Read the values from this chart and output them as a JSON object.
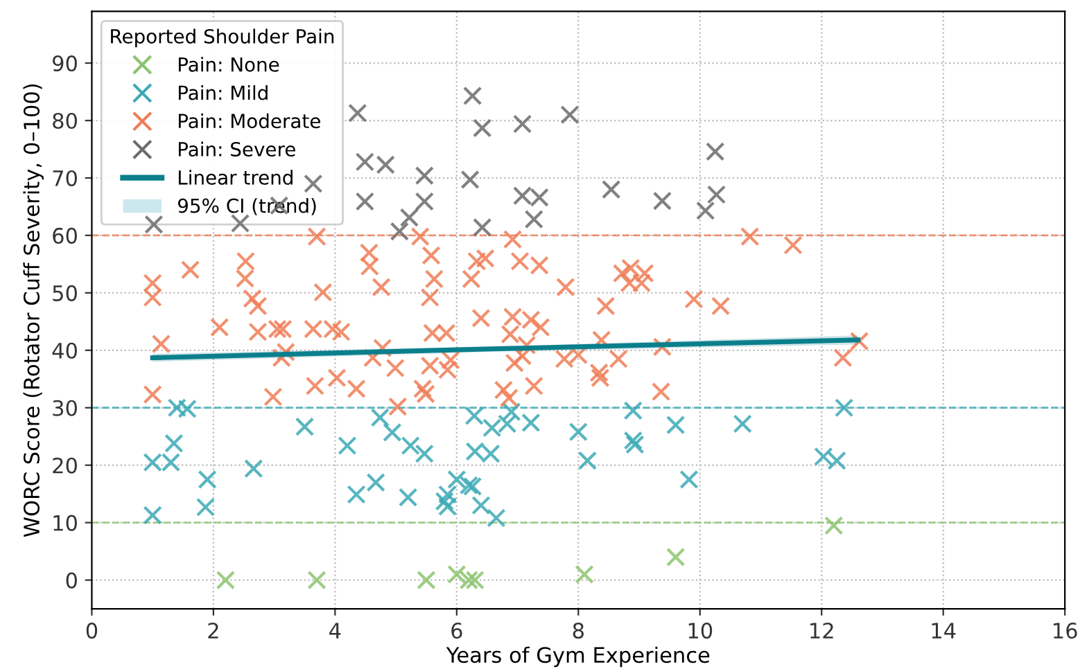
{
  "chart_data": {
    "type": "scatter",
    "xlabel": "Years of Gym Experience",
    "ylabel": "WORC Score (Rotator Cuff Severity, 0–100)",
    "legend_title": "Reported Shoulder Pain",
    "legend": "top left",
    "grid": true,
    "marker": "cross",
    "xlim": [
      0,
      16
    ],
    "xticks": [
      0,
      2,
      4,
      6,
      8,
      10,
      12,
      14,
      16
    ],
    "ylim": [
      -5,
      99
    ],
    "yticks": [
      0,
      10,
      20,
      30,
      40,
      50,
      60,
      70,
      80,
      90
    ],
    "series": [
      {
        "name": "Pain: None",
        "color": "#8cc46e",
        "x": [
          2.2,
          3.7,
          5.5,
          6.0,
          6.2,
          6.3,
          8.1,
          9.6,
          12.2
        ],
        "values": [
          0,
          0,
          0,
          1,
          0,
          0,
          1,
          4,
          9.5
        ]
      },
      {
        "name": "Pain: Mild",
        "color": "#3ba9b5",
        "x": [
          1.0,
          1.0,
          1.3,
          1.35,
          1.4,
          1.57,
          1.9,
          1.87,
          2.66,
          3.5,
          4.2,
          4.35,
          4.67,
          4.74,
          4.94,
          5.2,
          5.24,
          5.47,
          5.8,
          6.29,
          6.0,
          5.85,
          5.85,
          6.2,
          6.26,
          6.4,
          6.65,
          6.3,
          6.56,
          6.58,
          6.83,
          6.9,
          7.22,
          8.0,
          8.15,
          8.9,
          8.9,
          8.93,
          9.6,
          9.82,
          10.7,
          12.37,
          12.03,
          12.25
        ],
        "values": [
          20.5,
          11.3,
          20.5,
          23.8,
          30,
          29.8,
          17.5,
          12.7,
          19.4,
          26.7,
          23.4,
          14.9,
          17,
          28.3,
          25.7,
          14.4,
          23.4,
          22,
          13.7,
          28.6,
          17.5,
          14.9,
          12.8,
          16.5,
          16.3,
          13,
          10.8,
          22.4,
          22,
          26.5,
          27.2,
          29.3,
          27.4,
          25.8,
          20.8,
          29.5,
          24.3,
          23.6,
          27,
          17.5,
          27.2,
          30,
          21.5,
          20.8
        ]
      },
      {
        "name": "Pain: Moderate",
        "color": "#f07c56",
        "x": [
          1.0,
          1.0,
          1.62,
          2.53,
          2.52,
          2.64,
          2.73,
          3.7,
          3.8,
          4.56,
          4.57,
          4.76,
          5.4,
          5.58,
          5.63,
          5.56,
          6.24,
          6.33,
          6.47,
          6.92,
          7.04,
          7.36,
          7.79,
          8.45,
          8.72,
          8.86,
          8.84,
          9.09,
          9.04,
          9.9,
          10.34,
          10.82,
          11.53,
          1.14,
          1.0,
          2.1,
          2.73,
          3.05,
          3.14,
          3.64,
          3.96,
          4.1,
          3.12,
          3.19,
          2.98,
          3.67,
          4.03,
          4.35,
          4.62,
          4.78,
          4.99,
          5.03,
          5.44,
          5.49,
          5.56,
          5.6,
          5.83,
          5.85,
          5.9,
          6.4,
          6.92,
          7.22,
          7.38,
          6.88,
          7.15,
          6.95,
          7.08,
          6.77,
          6.86,
          7.27,
          7.77,
          8.0,
          8.38,
          8.34,
          8.36,
          8.66,
          9.38,
          9.36,
          12.35,
          12.62
        ],
        "values": [
          51.7,
          49.2,
          54,
          55.5,
          52.5,
          49,
          47.7,
          59.8,
          50.1,
          57,
          54.6,
          51,
          59.8,
          56.5,
          52.4,
          49.2,
          52.4,
          55.5,
          56,
          59.3,
          55.5,
          54.8,
          51,
          47.7,
          53.4,
          54.3,
          51.7,
          53.4,
          51.7,
          48.9,
          47.7,
          59.8,
          58.3,
          41.1,
          32.3,
          44,
          43.2,
          43.7,
          43.7,
          43.7,
          43.7,
          43.2,
          38.7,
          39.7,
          31.9,
          33.8,
          35.2,
          33.3,
          38.7,
          40.4,
          36.9,
          30.2,
          33.3,
          32.4,
          37.3,
          43,
          43,
          36.6,
          38.3,
          45.6,
          45.8,
          45.3,
          44,
          42.8,
          40.9,
          37.8,
          39,
          33.1,
          31.7,
          33.8,
          38.5,
          39.2,
          41.8,
          36.1,
          35.2,
          38.5,
          40.6,
          32.8,
          38.7,
          41.6
        ]
      },
      {
        "name": "Pain: Severe",
        "color": "#6b6b6b",
        "x": [
          1.02,
          2.44,
          3.08,
          3.64,
          4.37,
          4.49,
          4.83,
          4.49,
          5.47,
          5.47,
          5.22,
          5.06,
          6.26,
          6.42,
          7.08,
          7.86,
          6.22,
          7.08,
          7.36,
          7.27,
          6.42,
          8.54,
          9.38,
          10.25,
          10.27,
          10.09
        ],
        "values": [
          61.9,
          62.1,
          65.2,
          69,
          81.3,
          72.8,
          72.3,
          65.9,
          70.4,
          65.9,
          63.1,
          60.7,
          84.3,
          78.7,
          79.4,
          81,
          69.7,
          66.9,
          66.6,
          62.8,
          61.4,
          68,
          66,
          74.6,
          67.1,
          64.3
        ]
      },
      {
        "name": "Linear trend",
        "type": "line",
        "marker": "none",
        "color": "#0b7f8c",
        "x": [
          1.0,
          6.8,
          12.6
        ],
        "values": [
          38.7,
          40.3,
          41.8
        ],
        "lower": [
          38.0,
          39.8,
          41.0
        ],
        "upper": [
          39.4,
          40.7,
          42.6
        ]
      },
      {
        "name": "95% CI (trend)",
        "type": "area",
        "color": "#b7dde5",
        "marker": "none"
      }
    ],
    "ref_lines": [
      {
        "axis": "y",
        "value": 60,
        "color": "#f07c56",
        "line_style": "dashed"
      },
      {
        "axis": "y",
        "value": 30,
        "color": "#3ba9b5",
        "line_style": "dashed"
      },
      {
        "axis": "y",
        "value": 10,
        "color": "#8cc46e",
        "line_style": "dashed"
      }
    ]
  }
}
